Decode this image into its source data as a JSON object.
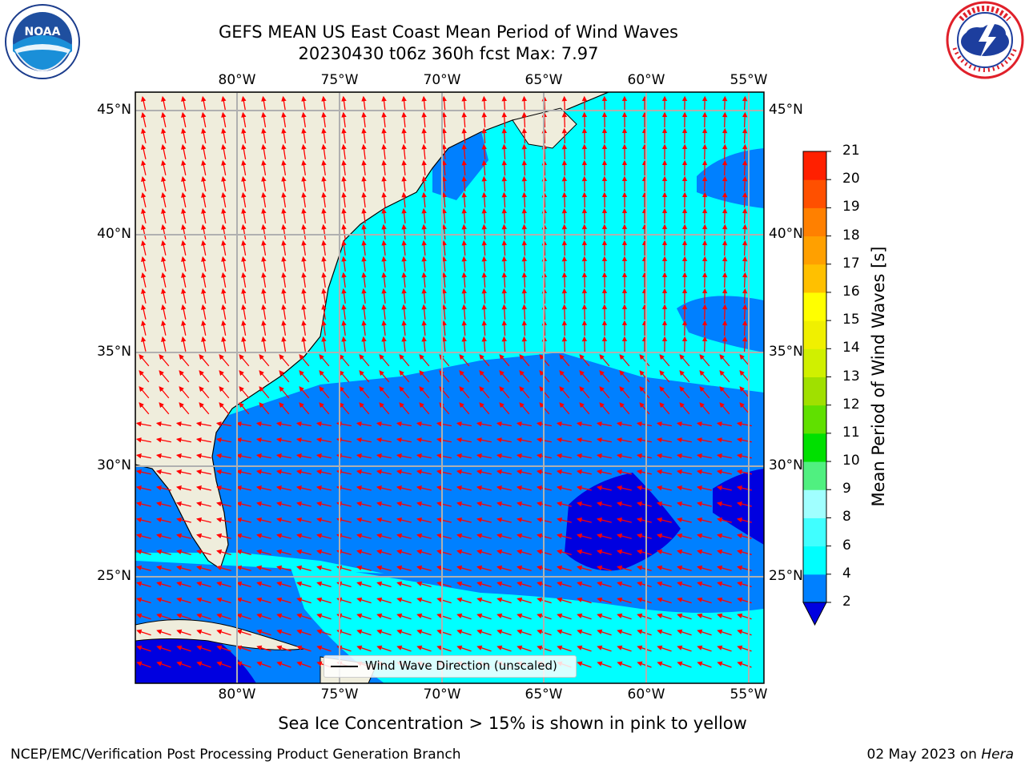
{
  "title": {
    "line1": "GEFS MEAN US East Coast Mean Period of Wind Waves",
    "line2": "20230430 t06z 360h fcst   Max: 7.97"
  },
  "map": {
    "lat_labels": [
      "45°N",
      "40°N",
      "35°N",
      "30°N",
      "25°N"
    ],
    "lon_labels": [
      "80°W",
      "75°W",
      "70°W",
      "65°W",
      "60°W",
      "55°W"
    ],
    "legend_label": "Wind Wave Direction (unscaled)",
    "land_color": "#efeddc",
    "arrow_color": "#ff0000",
    "grid_color": "#b0b0b0"
  },
  "colorbar": {
    "title": "Mean Period of Wind Waves [s]",
    "ticks": [
      "2",
      "4",
      "6",
      "8",
      "9",
      "10",
      "11",
      "12",
      "13",
      "14",
      "15",
      "16",
      "17",
      "18",
      "19",
      "20",
      "21"
    ],
    "colors": [
      "#0080ff",
      "#00ffff",
      "#40ffff",
      "#a0ffff",
      "#50f080",
      "#00e000",
      "#60e000",
      "#a0e000",
      "#d0f000",
      "#f0f000",
      "#ffff00",
      "#ffc000",
      "#ffa000",
      "#ff8000",
      "#ff5000",
      "#ff2000"
    ],
    "under_color": "#0000e0"
  },
  "caption": "Sea Ice Concentration > 15% is shown in pink to yellow",
  "credit": "NCEP/EMC/Verification Post Processing Product Generation Branch",
  "date": {
    "text": "02 May 2023 on ",
    "host": "Hera"
  },
  "logos": {
    "left": "noaa-logo",
    "right": "nws-logo",
    "left_text": "NOAA"
  }
}
